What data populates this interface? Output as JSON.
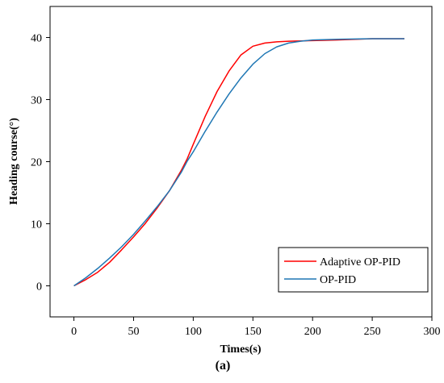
{
  "chart_data": {
    "type": "line",
    "title": "",
    "xlabel": "Times(s)",
    "ylabel": "Heading course(°)",
    "caption": "(a)",
    "xlim": [
      -20,
      300
    ],
    "ylim": [
      -5,
      45
    ],
    "xticks": [
      0,
      50,
      100,
      150,
      200,
      250,
      300
    ],
    "yticks": [
      0,
      10,
      20,
      30,
      40
    ],
    "grid": false,
    "legend_position": "bottom-right",
    "series": [
      {
        "name": "Adaptive OP-PID",
        "color": "#ff0000",
        "x": [
          0,
          10,
          20,
          30,
          40,
          50,
          60,
          70,
          80,
          90,
          95,
          100,
          110,
          120,
          130,
          140,
          150,
          160,
          170,
          180,
          200,
          220,
          250,
          277
        ],
        "y": [
          0,
          1,
          2.2,
          3.8,
          5.8,
          7.9,
          10.1,
          12.6,
          15.3,
          18.6,
          20.5,
          22.8,
          27.3,
          31.3,
          34.6,
          37.2,
          38.6,
          39.1,
          39.3,
          39.4,
          39.5,
          39.6,
          39.8,
          39.8
        ]
      },
      {
        "name": "OP-PID",
        "color": "#1f77b4",
        "x": [
          0,
          10,
          20,
          30,
          40,
          50,
          60,
          70,
          80,
          90,
          95,
          100,
          110,
          120,
          130,
          140,
          150,
          160,
          170,
          180,
          190,
          200,
          220,
          250,
          277
        ],
        "y": [
          0,
          1.3,
          2.8,
          4.5,
          6.3,
          8.3,
          10.5,
          12.8,
          15.3,
          18.3,
          20.1,
          21.6,
          24.9,
          28.0,
          30.9,
          33.5,
          35.7,
          37.4,
          38.5,
          39.1,
          39.4,
          39.6,
          39.7,
          39.8,
          39.8
        ]
      }
    ]
  }
}
